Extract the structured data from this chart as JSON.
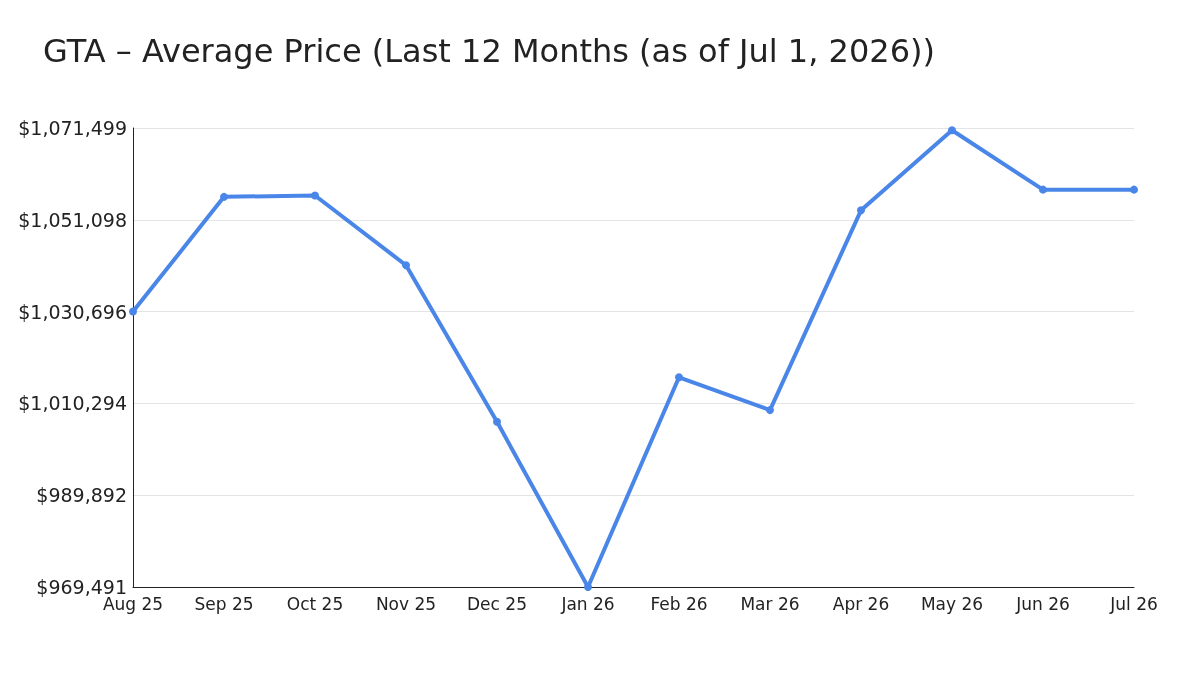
{
  "chart_data": {
    "type": "line",
    "title": "GTA – Average Price (Last 12 Months (as of Jul 1, 2026))",
    "categories": [
      "Aug 25",
      "Sep 25",
      "Oct 25",
      "Nov 25",
      "Dec 25",
      "Jan 26",
      "Feb 26",
      "Mar 26",
      "Apr 26",
      "May 26",
      "Jun 26",
      "Jul 26"
    ],
    "series": [
      {
        "color": "#4a86e8",
        "values": [
          1030700,
          1056200,
          1056500,
          1041000,
          1006200,
          969500,
          1016100,
          1008800,
          1053200,
          1071000,
          1057800,
          1057800
        ]
      }
    ],
    "ylim": [
      969491,
      1071499
    ],
    "yticks": [
      {
        "value": 969491,
        "label": "$969,491"
      },
      {
        "value": 989892,
        "label": "$989,892"
      },
      {
        "value": 1010294,
        "label": "$1,010,294"
      },
      {
        "value": 1030696,
        "label": "$1,030,696"
      },
      {
        "value": 1051098,
        "label": "$1,051,098"
      },
      {
        "value": 1071499,
        "label": "$1,071,499"
      }
    ],
    "grid": "y",
    "marker": "circle",
    "line_style": "solid"
  }
}
